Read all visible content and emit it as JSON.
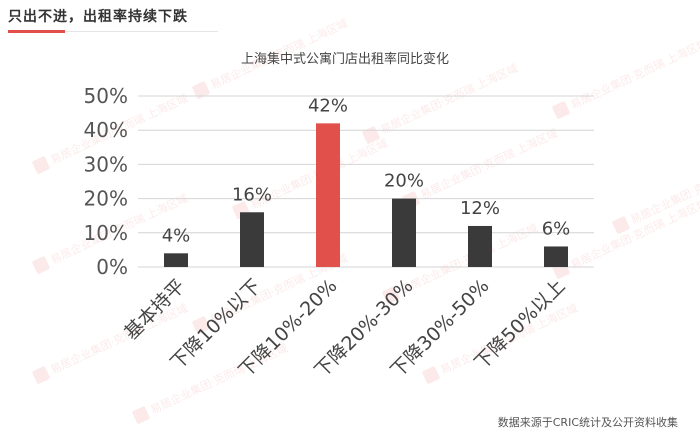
{
  "header": {
    "title": "只出不进，出租率持续下跌"
  },
  "chart_data": {
    "type": "bar",
    "title": "上海集中式公寓门店出租率同比变化",
    "categories": [
      "基本持平",
      "下降10%以下",
      "下降10%-20%",
      "下降20%-30%",
      "下降30%-50%",
      "下降50%以上"
    ],
    "values": [
      4,
      16,
      42,
      20,
      12,
      6
    ],
    "data_labels": [
      "4%",
      "16%",
      "42%",
      "20%",
      "12%",
      "6%"
    ],
    "ylim": [
      0,
      50
    ],
    "yticks": [
      "0%",
      "10%",
      "20%",
      "30%",
      "40%",
      "50%"
    ],
    "grid": true,
    "colors": {
      "default": "#3a3a3a",
      "highlight": "#e2504c"
    },
    "highlight_index": 2
  },
  "watermark": {
    "text": "易居企业集团·克而瑞 上海区域"
  },
  "footer": {
    "source": "数据来源于CRIC统计及公开资料收集"
  }
}
